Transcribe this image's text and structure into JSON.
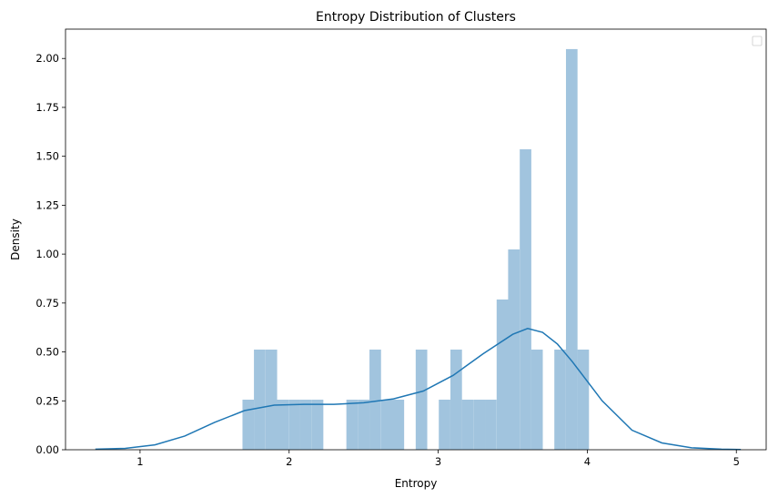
{
  "chart_data": {
    "type": "bar",
    "title": "Entropy Distribution of Clusters",
    "xlabel": "Entropy",
    "ylabel": "Density",
    "xlim": [
      0.5,
      5.2
    ],
    "ylim": [
      0,
      2.15
    ],
    "xticks": [
      "1",
      "2",
      "3",
      "4",
      "5"
    ],
    "xtick_values": [
      1,
      2,
      3,
      4,
      5
    ],
    "yticks": [
      "0.00",
      "0.25",
      "0.50",
      "0.75",
      "1.00",
      "1.25",
      "1.50",
      "1.75",
      "2.00"
    ],
    "ytick_values": [
      0,
      0.25,
      0.5,
      0.75,
      1.0,
      1.25,
      1.5,
      1.75,
      2.0
    ],
    "grid": false,
    "legend": {
      "location": "top-right",
      "entries": []
    },
    "bar_color": "#a1c4de",
    "line_color": "#1f77b4",
    "bin_width": 0.0775,
    "bins": [
      {
        "x": 1.687,
        "density": 0.256
      },
      {
        "x": 1.764,
        "density": 0.512
      },
      {
        "x": 1.842,
        "density": 0.512
      },
      {
        "x": 1.919,
        "density": 0.256
      },
      {
        "x": 1.997,
        "density": 0.256
      },
      {
        "x": 2.074,
        "density": 0.256
      },
      {
        "x": 2.152,
        "density": 0.256
      },
      {
        "x": 2.307,
        "density": 0.0
      },
      {
        "x": 2.384,
        "density": 0.256
      },
      {
        "x": 2.462,
        "density": 0.256
      },
      {
        "x": 2.539,
        "density": 0.512
      },
      {
        "x": 2.617,
        "density": 0.256
      },
      {
        "x": 2.694,
        "density": 0.256
      },
      {
        "x": 2.849,
        "density": 0.512
      },
      {
        "x": 3.004,
        "density": 0.256
      },
      {
        "x": 3.082,
        "density": 0.512
      },
      {
        "x": 3.159,
        "density": 0.256
      },
      {
        "x": 3.237,
        "density": 0.256
      },
      {
        "x": 3.314,
        "density": 0.256
      },
      {
        "x": 3.392,
        "density": 0.768
      },
      {
        "x": 3.469,
        "density": 1.024
      },
      {
        "x": 3.547,
        "density": 1.536
      },
      {
        "x": 3.624,
        "density": 0.512
      },
      {
        "x": 3.779,
        "density": 0.512
      },
      {
        "x": 3.857,
        "density": 2.048
      },
      {
        "x": 3.934,
        "density": 0.512
      }
    ],
    "kde": {
      "x": [
        0.7,
        0.9,
        1.1,
        1.3,
        1.5,
        1.7,
        1.9,
        2.1,
        2.3,
        2.5,
        2.7,
        2.9,
        3.1,
        3.3,
        3.5,
        3.6,
        3.7,
        3.8,
        3.9,
        4.1,
        4.3,
        4.5,
        4.7,
        4.9,
        5.03
      ],
      "y": [
        0.003,
        0.007,
        0.025,
        0.07,
        0.14,
        0.2,
        0.228,
        0.232,
        0.232,
        0.24,
        0.26,
        0.3,
        0.38,
        0.49,
        0.59,
        0.62,
        0.6,
        0.54,
        0.45,
        0.25,
        0.1,
        0.035,
        0.01,
        0.003,
        0.001
      ]
    }
  }
}
